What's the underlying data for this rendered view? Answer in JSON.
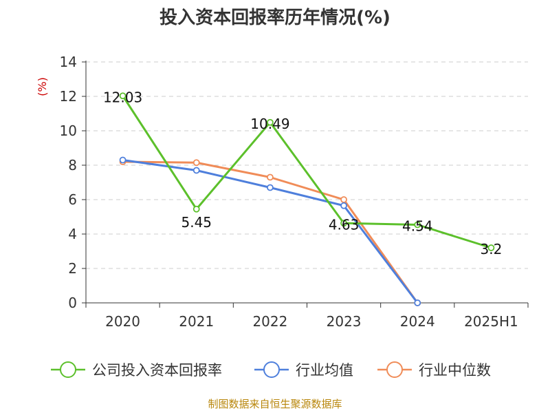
{
  "colors": {
    "company": "#5cc02b",
    "industry_mean": "#4e7fdc",
    "industry_median": "#f08c58",
    "grid": "#cccccc",
    "axis": "#333333",
    "source": "#b8860b",
    "unit": "#cc0000"
  },
  "source_text": "制图数据来自恒生聚源数据库",
  "chart_data": {
    "type": "line",
    "title": "投入资本回报率历年情况(%)",
    "ylabel": "(%)",
    "categories": [
      "2020",
      "2021",
      "2022",
      "2023",
      "2024",
      "2025H1"
    ],
    "ylim": [
      0,
      14
    ],
    "yticks": [
      0,
      2,
      4,
      6,
      8,
      10,
      12,
      14
    ],
    "grid": true,
    "legend_position": "bottom",
    "series": [
      {
        "name": "公司投入资本回报率",
        "values": [
          12.03,
          5.45,
          10.49,
          4.63,
          4.54,
          3.2
        ],
        "labels": [
          "12.03",
          "5.45",
          "10.49",
          "4.63",
          "4.54",
          "3.2"
        ]
      },
      {
        "name": "行业均值",
        "values": [
          8.3,
          7.7,
          6.7,
          5.65,
          0,
          null
        ]
      },
      {
        "name": "行业中位数",
        "values": [
          8.2,
          8.15,
          7.3,
          6.0,
          0,
          null
        ]
      }
    ]
  }
}
